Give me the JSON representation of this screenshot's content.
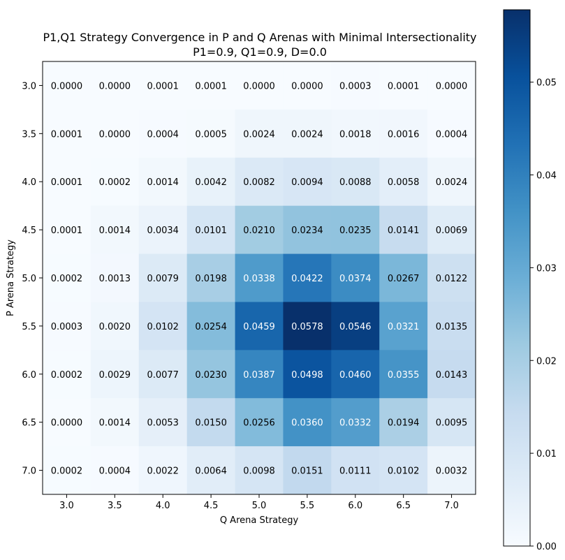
{
  "chart_data": {
    "type": "heatmap",
    "title": "P1,Q1 Strategy Convergence in P and Q Arenas with Minimal Intersectionality",
    "subtitle": "P1=0.9, Q1=0.9, D=0.0",
    "xlabel": "Q Arena Strategy",
    "ylabel": "P Arena Strategy",
    "x_categories": [
      "3.0",
      "3.5",
      "4.0",
      "4.5",
      "5.0",
      "5.5",
      "6.0",
      "6.5",
      "7.0"
    ],
    "y_categories": [
      "3.0",
      "3.5",
      "4.0",
      "4.5",
      "5.0",
      "5.5",
      "6.0",
      "6.5",
      "7.0"
    ],
    "values": [
      [
        0.0,
        0.0,
        0.0001,
        0.0001,
        0.0,
        0.0,
        0.0003,
        0.0001,
        0.0
      ],
      [
        0.0001,
        0.0,
        0.0004,
        0.0005,
        0.0024,
        0.0024,
        0.0018,
        0.0016,
        0.0004
      ],
      [
        0.0001,
        0.0002,
        0.0014,
        0.0042,
        0.0082,
        0.0094,
        0.0088,
        0.0058,
        0.0024
      ],
      [
        0.0001,
        0.0014,
        0.0034,
        0.0101,
        0.021,
        0.0234,
        0.0235,
        0.0141,
        0.0069
      ],
      [
        0.0002,
        0.0013,
        0.0079,
        0.0198,
        0.0338,
        0.0422,
        0.0374,
        0.0267,
        0.0122
      ],
      [
        0.0003,
        0.002,
        0.0102,
        0.0254,
        0.0459,
        0.0578,
        0.0546,
        0.0321,
        0.0135
      ],
      [
        0.0002,
        0.0029,
        0.0077,
        0.023,
        0.0387,
        0.0498,
        0.046,
        0.0355,
        0.0143
      ],
      [
        0.0,
        0.0014,
        0.0053,
        0.015,
        0.0256,
        0.036,
        0.0332,
        0.0194,
        0.0095
      ],
      [
        0.0002,
        0.0004,
        0.0022,
        0.0064,
        0.0098,
        0.0151,
        0.0111,
        0.0102,
        0.0032
      ]
    ],
    "value_labels": [
      [
        "0.0000",
        "0.0000",
        "0.0001",
        "0.0001",
        "0.0000",
        "0.0000",
        "0.0003",
        "0.0001",
        "0.0000"
      ],
      [
        "0.0001",
        "0.0000",
        "0.0004",
        "0.0005",
        "0.0024",
        "0.0024",
        "0.0018",
        "0.0016",
        "0.0004"
      ],
      [
        "0.0001",
        "0.0002",
        "0.0014",
        "0.0042",
        "0.0082",
        "0.0094",
        "0.0088",
        "0.0058",
        "0.0024"
      ],
      [
        "0.0001",
        "0.0014",
        "0.0034",
        "0.0101",
        "0.0210",
        "0.0234",
        "0.0235",
        "0.0141",
        "0.0069"
      ],
      [
        "0.0002",
        "0.0013",
        "0.0079",
        "0.0198",
        "0.0338",
        "0.0422",
        "0.0374",
        "0.0267",
        "0.0122"
      ],
      [
        "0.0003",
        "0.0020",
        "0.0102",
        "0.0254",
        "0.0459",
        "0.0578",
        "0.0546",
        "0.0321",
        "0.0135"
      ],
      [
        "0.0002",
        "0.0029",
        "0.0077",
        "0.0230",
        "0.0387",
        "0.0498",
        "0.0460",
        "0.0355",
        "0.0143"
      ],
      [
        "0.0000",
        "0.0014",
        "0.0053",
        "0.0150",
        "0.0256",
        "0.0360",
        "0.0332",
        "0.0194",
        "0.0095"
      ],
      [
        "0.0002",
        "0.0004",
        "0.0022",
        "0.0064",
        "0.0098",
        "0.0151",
        "0.0111",
        "0.0102",
        "0.0032"
      ]
    ],
    "colorbar": {
      "colormap": "Blues",
      "vmin": 0.0,
      "vmax": 0.0578,
      "ticks": [
        0.0,
        0.01,
        0.02,
        0.03,
        0.04,
        0.05
      ],
      "tick_labels": [
        "0.00",
        "0.01",
        "0.02",
        "0.03",
        "0.04",
        "0.05"
      ]
    },
    "grid": false
  }
}
